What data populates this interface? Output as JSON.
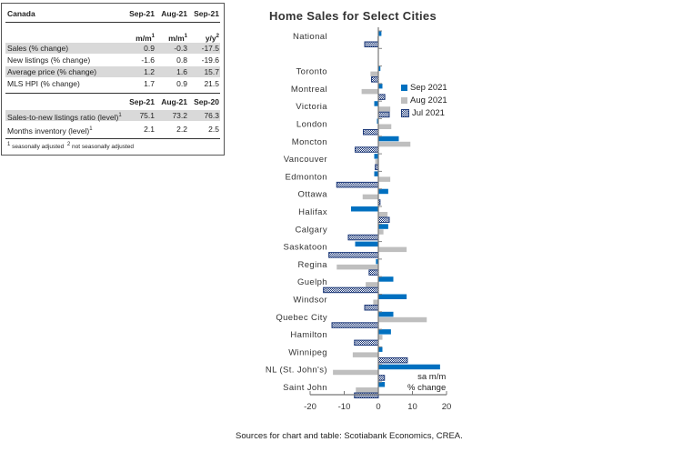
{
  "table": {
    "title": "Canada",
    "header1": [
      "Sep-21",
      "Aug-21",
      "Sep-21"
    ],
    "subheader": [
      "m/m",
      "m/m",
      "y/y"
    ],
    "subheader_sup": [
      "1",
      "1",
      "2"
    ],
    "rows1": [
      {
        "label": "Sales (% change)",
        "values": [
          "0.9",
          "-0.3",
          "-17.5"
        ]
      },
      {
        "label": "New listings (% change)",
        "values": [
          "-1.6",
          "0.8",
          "-19.6"
        ]
      },
      {
        "label": "Average price (% change)",
        "values": [
          "1.2",
          "1.6",
          "15.7"
        ]
      },
      {
        "label": "MLS HPI (% change)",
        "values": [
          "1.7",
          "0.9",
          "21.5"
        ]
      }
    ],
    "header2": [
      "Sep-21",
      "Aug-21",
      "Sep-20"
    ],
    "rows2": [
      {
        "label": "Sales-to-new listings ratio (level)",
        "sup": "1",
        "values": [
          "75.1",
          "73.2",
          "76.3"
        ]
      },
      {
        "label": "Months inventory (level)",
        "sup": "1",
        "values": [
          "2.1",
          "2.2",
          "2.5"
        ]
      }
    ],
    "footnote1_sup": "1",
    "footnote1": "seasonally adjusted",
    "footnote2_sup": "2",
    "footnote2": "not seasonally adjusted"
  },
  "source": "Sources for chart and table: Scotiabank Economics, CREA.",
  "chart_data": {
    "type": "bar",
    "orientation": "horizontal",
    "title": "Home Sales for Select Cities",
    "xlabel": "sa m/m % change",
    "xlabel_lines": [
      "sa m/m",
      "% change"
    ],
    "xlim": [
      -20,
      20
    ],
    "xticks": [
      "-20",
      "-10",
      "0",
      "10",
      "20"
    ],
    "legend": "right",
    "categories": [
      "National",
      "",
      "Toronto",
      "Montreal",
      "Victoria",
      "London",
      "Moncton",
      "Vancouver",
      "Edmonton",
      "Ottawa",
      "Halifax",
      "Calgary",
      "Saskatoon",
      "Regina",
      "Guelph",
      "Windsor",
      "Quebec City",
      "Hamilton",
      "Winnipeg",
      "NL (St. John's)",
      "Saint John"
    ],
    "series": [
      {
        "name": "Sep 2021",
        "color": "#0070c0",
        "values": [
          0.9,
          null,
          0.6,
          1.2,
          -1.2,
          -0.4,
          6.0,
          -1.2,
          -1.2,
          2.9,
          -8.0,
          2.9,
          -6.8,
          -0.7,
          4.4,
          8.3,
          4.4,
          3.7,
          1.2,
          18.1,
          1.9
        ]
      },
      {
        "name": "Aug 2021",
        "color": "#bfbfbf",
        "values": [
          -0.3,
          null,
          -2.3,
          -4.9,
          3.5,
          3.8,
          9.4,
          -0.9,
          3.5,
          -4.6,
          2.7,
          1.5,
          8.3,
          -12.2,
          -3.7,
          -1.5,
          14.2,
          1.2,
          -7.5,
          -13.3,
          -6.6
        ]
      },
      {
        "name": "Jul 2021",
        "color": "#1f3b7a",
        "values": [
          -4.0,
          null,
          -2.0,
          1.9,
          3.2,
          -4.4,
          -6.8,
          -0.9,
          -12.2,
          0.5,
          3.2,
          -8.8,
          -14.5,
          -2.7,
          -16.1,
          -4.0,
          -13.6,
          -7.0,
          8.5,
          1.8,
          -7.0
        ]
      }
    ]
  }
}
